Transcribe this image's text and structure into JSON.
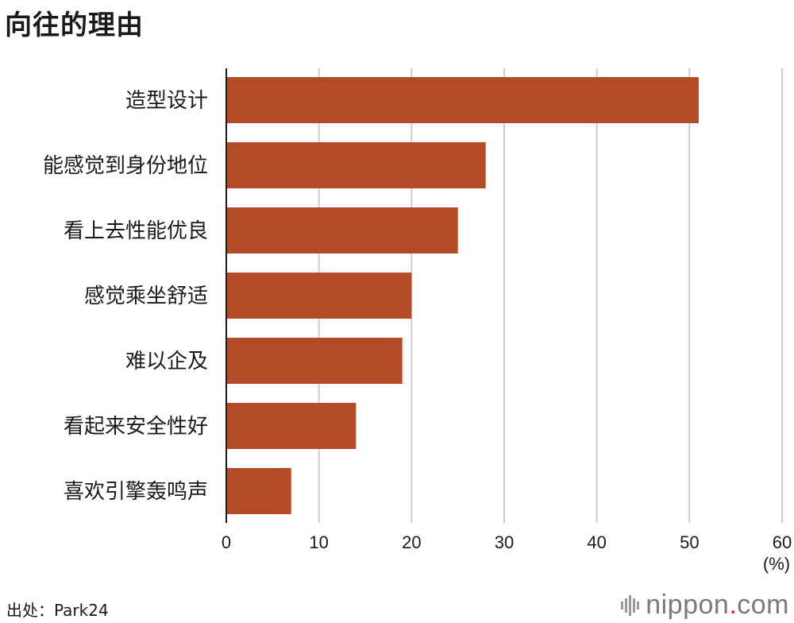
{
  "title": "向往的理由",
  "source": "出处：Park24",
  "brand": {
    "name": "nippon",
    "dot": ".",
    "suffix": "com",
    "icon": "signal-bars-icon"
  },
  "colors": {
    "bar": "#b54a28",
    "grid": "#cccccc",
    "axis": "#1a1a1a"
  },
  "chart_data": {
    "type": "bar",
    "orientation": "horizontal",
    "title": "向往的理由",
    "categories": [
      "造型设计",
      "能感觉到身份地位",
      "看上去性能优良",
      "感觉乘坐舒适",
      "难以企及",
      "看起来安全性好",
      "喜欢引擎轰鸣声"
    ],
    "values": [
      51,
      28,
      25,
      20,
      19,
      14,
      7
    ],
    "xlim": [
      0,
      60
    ],
    "xticks": [
      0,
      10,
      20,
      30,
      40,
      50,
      60
    ],
    "xlabel": "(%)",
    "ylabel": "",
    "grid": true
  }
}
